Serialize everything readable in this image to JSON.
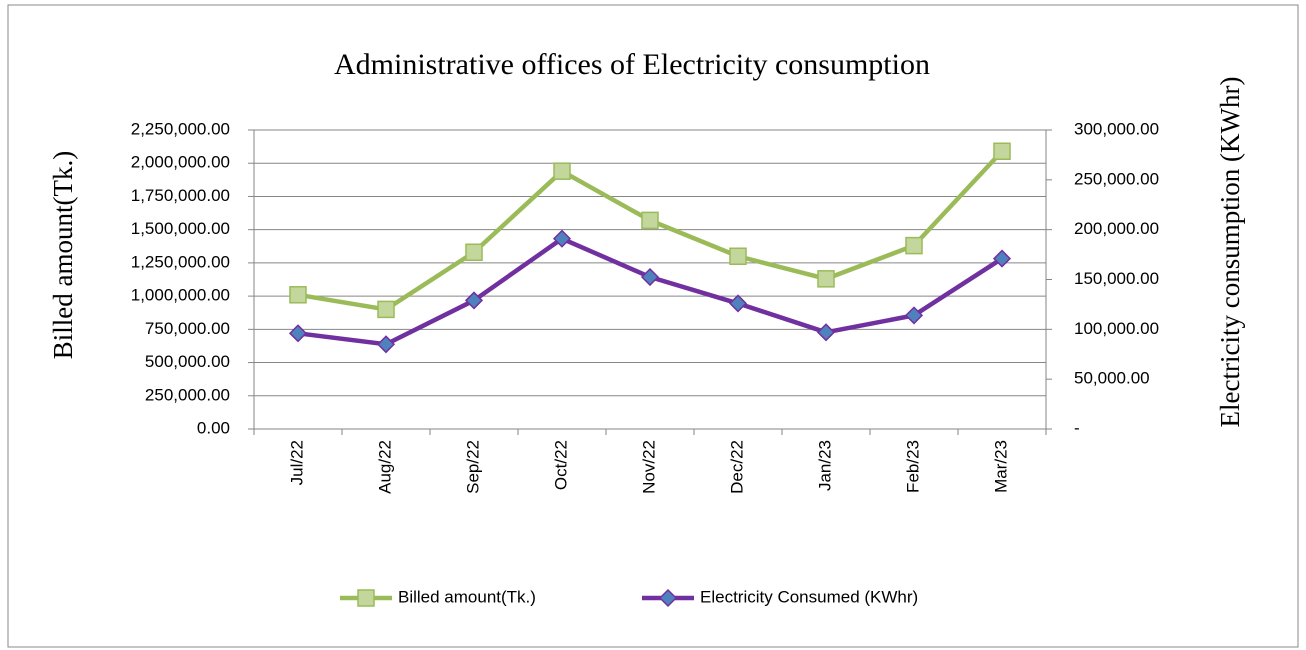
{
  "chart_data": {
    "type": "line",
    "title": "Administrative offices of Electricity consumption",
    "ylabel": "Billed amount(Tk.)",
    "y2label": "Electricity consumption (KWhr)",
    "categories": [
      "Jul/22",
      "Aug/22",
      "Sep/22",
      "Oct/22",
      "Nov/22",
      "Dec/22",
      "Jan/23",
      "Feb/23",
      "Mar/23"
    ],
    "series": [
      {
        "name": "Billed amount(Tk.)",
        "color": "#9bbb59",
        "marker": "square",
        "marker_color": "#c3d69b",
        "values": [
          1010000,
          900000,
          1330000,
          1940000,
          1570000,
          1300000,
          1130000,
          1380000,
          2090000
        ]
      },
      {
        "name": "Electricity Consumed (KWhr)",
        "color": "#7030a0",
        "marker": "diamond",
        "marker_color": "#4f81bd",
        "axis": "y2",
        "values": [
          96000,
          85000,
          129000,
          191000,
          152500,
          126000,
          97000,
          114000,
          171000
        ]
      }
    ],
    "ylim": [
      0,
      2250000
    ],
    "yticks": [
      {
        "value": 0,
        "label": "0.00"
      },
      {
        "value": 250000,
        "label": "250,000.00"
      },
      {
        "value": 500000,
        "label": "500,000.00"
      },
      {
        "value": 750000,
        "label": "750,000.00"
      },
      {
        "value": 1000000,
        "label": "1,000,000.00"
      },
      {
        "value": 1250000,
        "label": "1,250,000.00"
      },
      {
        "value": 1500000,
        "label": "1,500,000.00"
      },
      {
        "value": 1750000,
        "label": "1,750,000.00"
      },
      {
        "value": 2000000,
        "label": "2,000,000.00"
      },
      {
        "value": 2250000,
        "label": "2,250,000.00"
      }
    ],
    "y2lim": [
      0,
      300000
    ],
    "y2ticks": [
      {
        "value": 0,
        "label": "-"
      },
      {
        "value": 50000,
        "label": "50,000.00"
      },
      {
        "value": 100000,
        "label": "100,000.00"
      },
      {
        "value": 150000,
        "label": "150,000.00"
      },
      {
        "value": 200000,
        "label": "200,000.00"
      },
      {
        "value": 250000,
        "label": "250,000.00"
      },
      {
        "value": 300000,
        "label": "300,000.00"
      }
    ],
    "grid": true,
    "legend": "bottom"
  }
}
